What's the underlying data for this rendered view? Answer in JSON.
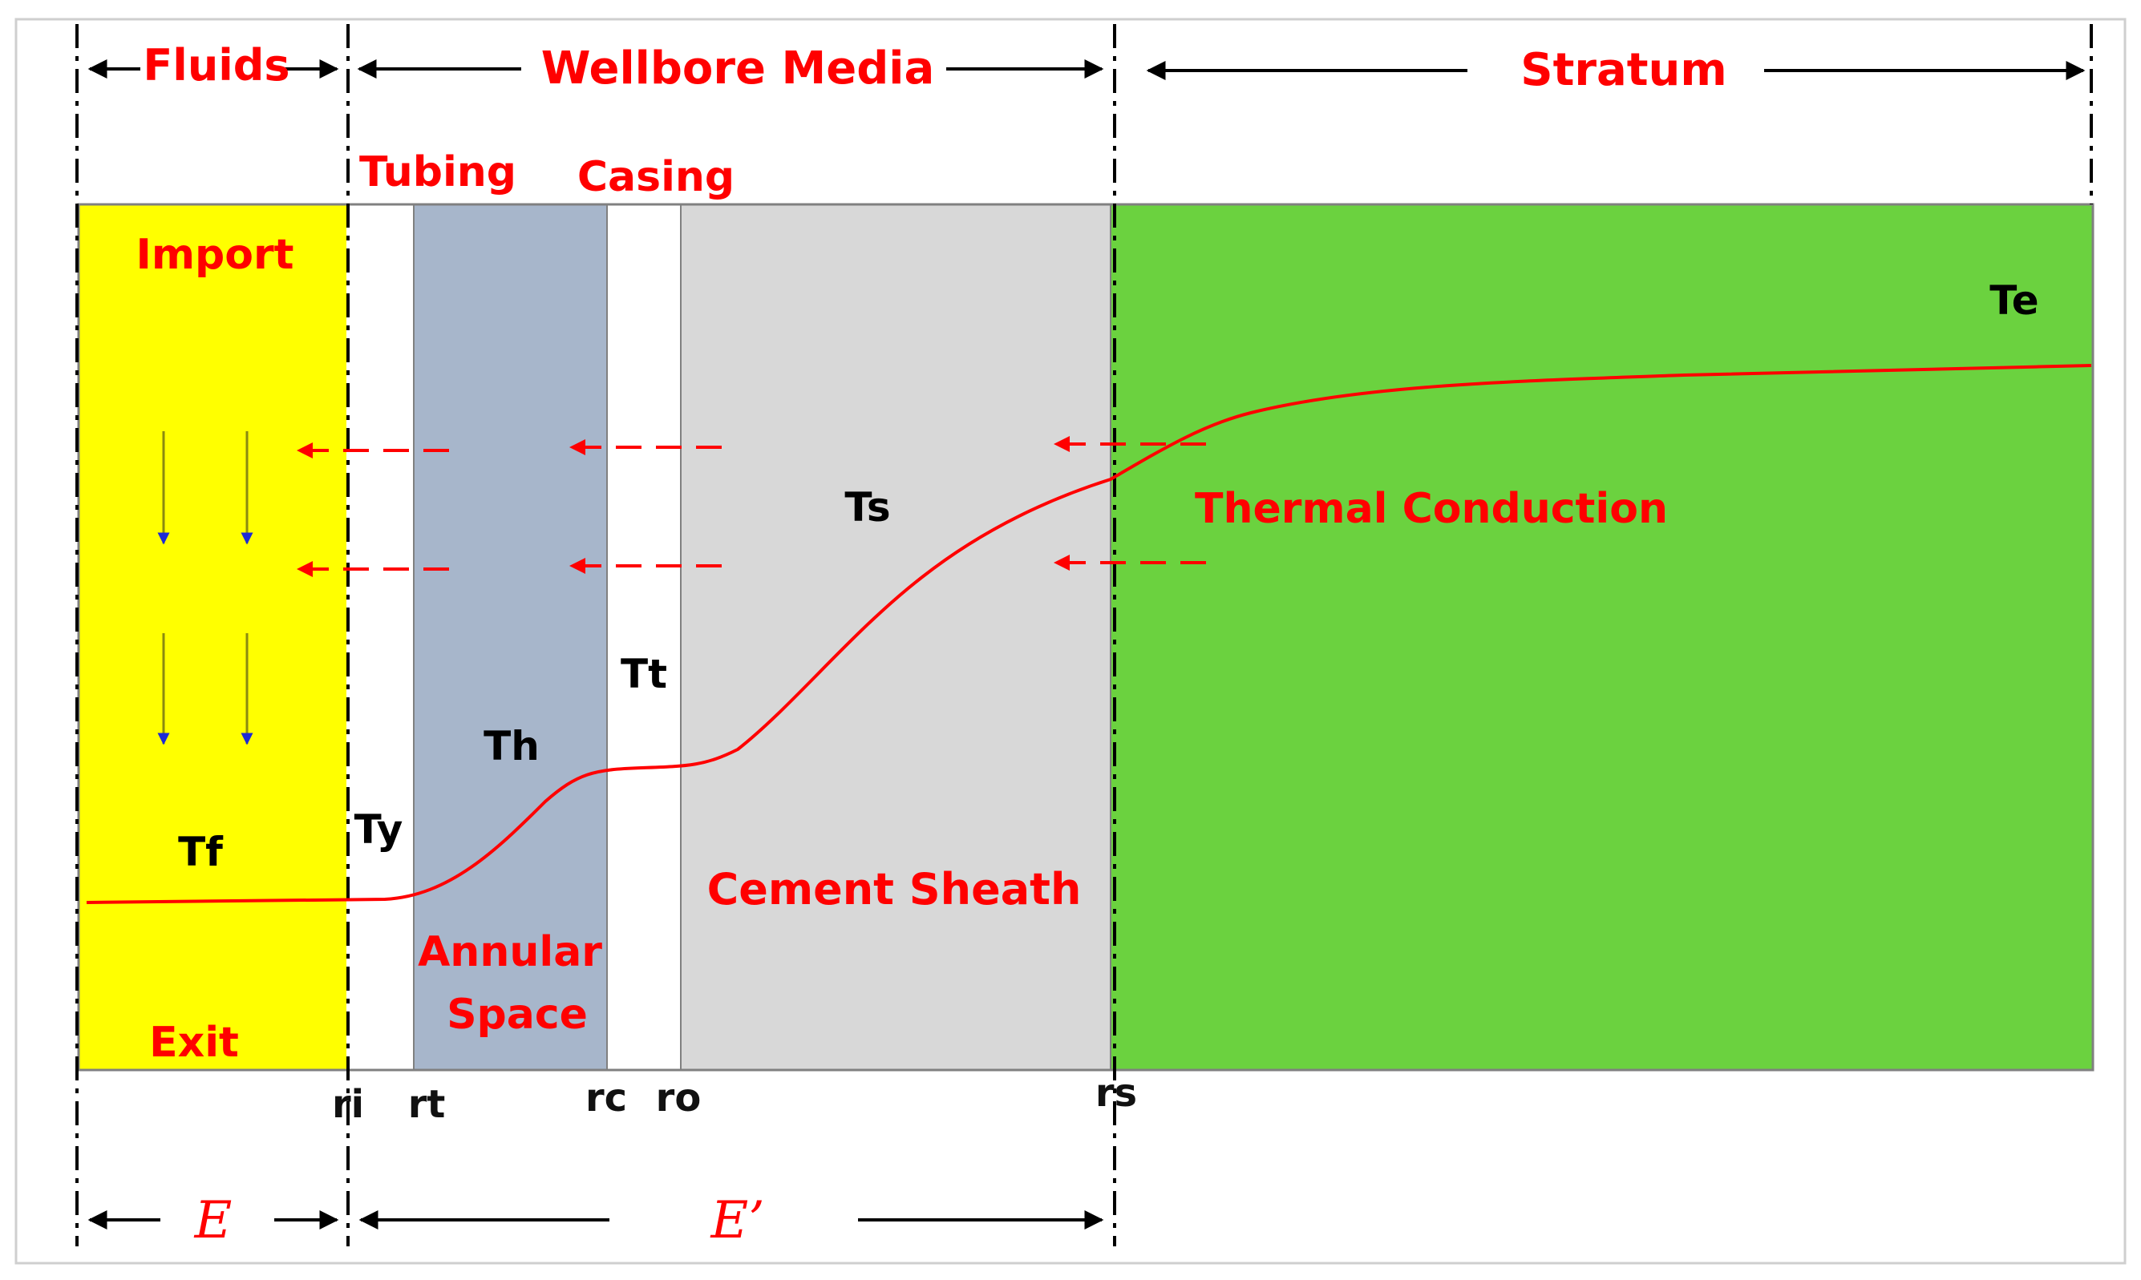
{
  "labels": {
    "fluids": "Fluids",
    "wellbore_media": "Wellbore Media",
    "stratum": "Stratum",
    "tubing": "Tubing",
    "casing": "Casing",
    "import": "Import",
    "exit": "Exit",
    "te": "Te",
    "ts": "Ts",
    "tt": "Tt",
    "th": "Th",
    "ty": "Ty",
    "tf": "Tf",
    "thermal_conduction": "Thermal Conduction",
    "cement_sheath": "Cement Sheath",
    "annular_space_line1": "Annular",
    "annular_space_line2": "Space",
    "radius_ri": "ri",
    "radius_rt": "rt",
    "radius_rc": "rc",
    "radius_ro": "ro",
    "radius_rs": "rs",
    "region_e": "E",
    "region_e_prime": "E’"
  },
  "colors": {
    "fluid": "#ffff00",
    "annulus": "#a7b6cb",
    "cement": "#d8d8d8",
    "stratum": "#6bd23f",
    "wall": "#ffffff",
    "label_red": "#ff0000",
    "flow_arrow": "#2222cc",
    "temperature_curve": "#ff0000"
  }
}
